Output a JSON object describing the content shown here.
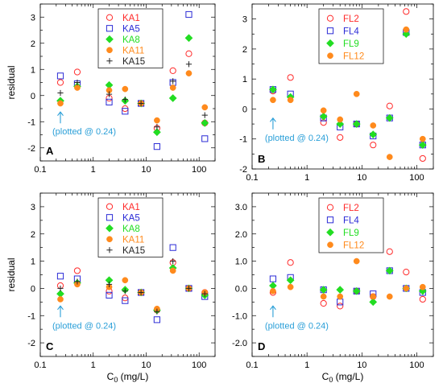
{
  "colors": {
    "series1": "#ff2a2a",
    "series2": "#2b2bd6",
    "series3": "#22dd22",
    "series4": "#ff8a1c",
    "series5": "#222222",
    "annotation": "#2a9fd8"
  },
  "chart_data": [
    {
      "id": "A",
      "type": "scatter",
      "panel_label": "A",
      "ylabel": "residual",
      "xlabel": "",
      "xscale": "log",
      "xlim": [
        0.1,
        200
      ],
      "ylim": [
        -2.5,
        3.5
      ],
      "yticks": [
        -2,
        -1,
        0,
        1,
        2,
        3
      ],
      "ytick_labels": [
        "-2",
        "-1",
        "0",
        "1",
        "2",
        "3"
      ],
      "xticks": [
        0.1,
        1,
        10,
        100
      ],
      "xtick_labels": [
        "0.1",
        "1",
        "10",
        "100"
      ],
      "legend_position": "top-center",
      "annotation": "(plotted @ 0.24)",
      "series": [
        {
          "name": "KA1",
          "marker": "circle-open",
          "color": "#ff2a2a",
          "points": [
            [
              0.24,
              0.5
            ],
            [
              0.5,
              0.9
            ],
            [
              2,
              -0.1
            ],
            [
              4,
              -0.5
            ],
            [
              8,
              -0.3
            ],
            [
              16,
              -1.25
            ],
            [
              32,
              0.95
            ],
            [
              64,
              1.6
            ],
            [
              128,
              -1.05
            ]
          ]
        },
        {
          "name": "KA5",
          "marker": "square-open",
          "color": "#2b2bd6",
          "points": [
            [
              0.24,
              0.75
            ],
            [
              0.5,
              0.45
            ],
            [
              2,
              -0.25
            ],
            [
              4,
              -0.6
            ],
            [
              8,
              -0.3
            ],
            [
              16,
              -1.95
            ],
            [
              32,
              0.5
            ],
            [
              64,
              3.1
            ],
            [
              128,
              -1.65
            ]
          ]
        },
        {
          "name": "KA8",
          "marker": "diamond-filled",
          "color": "#22dd22",
          "points": [
            [
              0.24,
              -0.2
            ],
            [
              0.5,
              0.35
            ],
            [
              2,
              0.4
            ],
            [
              4,
              -0.2
            ],
            [
              8,
              -0.3
            ],
            [
              16,
              -1.4
            ],
            [
              32,
              -0.1
            ],
            [
              64,
              2.2
            ],
            [
              128,
              -1.05
            ]
          ]
        },
        {
          "name": "KA11",
          "marker": "circle-filled",
          "color": "#ff8a1c",
          "points": [
            [
              0.24,
              -0.3
            ],
            [
              0.5,
              0.3
            ],
            [
              2,
              0.2
            ],
            [
              4,
              0.25
            ],
            [
              8,
              -0.3
            ],
            [
              16,
              -0.95
            ],
            [
              32,
              0.3
            ],
            [
              64,
              0.85
            ],
            [
              128,
              -0.45
            ]
          ]
        },
        {
          "name": "KA15",
          "marker": "plus",
          "color": "#222222",
          "points": [
            [
              0.24,
              0.1
            ],
            [
              0.5,
              0.5
            ],
            [
              2,
              0.05
            ],
            [
              4,
              -0.15
            ],
            [
              8,
              -0.3
            ],
            [
              16,
              -1.2
            ],
            [
              32,
              0.55
            ],
            [
              64,
              1.2
            ],
            [
              128,
              -0.75
            ]
          ]
        }
      ]
    },
    {
      "id": "B",
      "type": "scatter",
      "panel_label": "B",
      "ylabel": "",
      "xlabel": "",
      "xscale": "log",
      "xlim": [
        0.1,
        200
      ],
      "ylim": [
        -2,
        3.5
      ],
      "yticks": [
        -2,
        -1,
        0,
        1,
        2,
        3
      ],
      "ytick_labels": [
        "-2",
        "-1",
        "0",
        "1",
        "2",
        "3"
      ],
      "xticks": [
        0.1,
        1,
        10,
        100
      ],
      "xtick_labels": [
        "0.1",
        "1",
        "10",
        "100"
      ],
      "legend_position": "top-center",
      "annotation": "(plotted @ 0.24)",
      "series": [
        {
          "name": "FL2",
          "marker": "circle-open",
          "color": "#ff2a2a",
          "points": [
            [
              0.24,
              0.6
            ],
            [
              0.5,
              1.05
            ],
            [
              2,
              -0.45
            ],
            [
              4,
              -0.95
            ],
            [
              8,
              -0.5
            ],
            [
              16,
              -1.2
            ],
            [
              32,
              0.1
            ],
            [
              64,
              3.25
            ],
            [
              128,
              -1.65
            ]
          ]
        },
        {
          "name": "FL4",
          "marker": "square-open",
          "color": "#2b2bd6",
          "points": [
            [
              0.24,
              0.65
            ],
            [
              0.5,
              0.5
            ],
            [
              2,
              -0.3
            ],
            [
              4,
              -0.6
            ],
            [
              8,
              -0.5
            ],
            [
              16,
              -0.9
            ],
            [
              32,
              -0.3
            ],
            [
              64,
              2.55
            ],
            [
              128,
              -1.2
            ]
          ]
        },
        {
          "name": "FL9",
          "marker": "diamond-filled",
          "color": "#22dd22",
          "points": [
            [
              0.24,
              0.65
            ],
            [
              0.5,
              0.4
            ],
            [
              2,
              -0.25
            ],
            [
              4,
              -0.5
            ],
            [
              8,
              -0.5
            ],
            [
              16,
              -0.85
            ],
            [
              32,
              -0.3
            ],
            [
              64,
              2.5
            ],
            [
              128,
              -1.2
            ]
          ]
        },
        {
          "name": "FL12",
          "marker": "circle-filled",
          "color": "#ff8a1c",
          "points": [
            [
              0.24,
              0.3
            ],
            [
              0.5,
              0.3
            ],
            [
              2,
              -0.05
            ],
            [
              4,
              -0.35
            ],
            [
              8,
              0.5
            ],
            [
              16,
              -0.55
            ],
            [
              32,
              -1.6
            ],
            [
              64,
              2.65
            ],
            [
              128,
              -1.0
            ]
          ]
        }
      ]
    },
    {
      "id": "C",
      "type": "scatter",
      "panel_label": "C",
      "ylabel": "residual",
      "xlabel": "C0 (mg/L)",
      "xscale": "log",
      "xlim": [
        0.1,
        200
      ],
      "ylim": [
        -2.5,
        3.5
      ],
      "yticks": [
        -2,
        -1,
        0,
        1,
        2,
        3
      ],
      "ytick_labels": [
        "-2",
        "-1",
        "0",
        "1",
        "2",
        "3"
      ],
      "xticks": [
        0.1,
        1,
        10,
        100
      ],
      "xtick_labels": [
        "0.1",
        "1",
        "10",
        "100"
      ],
      "legend_position": "top-center",
      "annotation": "(plotted @ 0.24)",
      "series": [
        {
          "name": "KA1",
          "marker": "circle-open",
          "color": "#ff2a2a",
          "points": [
            [
              0.24,
              0.1
            ],
            [
              0.5,
              0.65
            ],
            [
              2,
              -0.1
            ],
            [
              4,
              -0.35
            ],
            [
              8,
              -0.15
            ],
            [
              16,
              -0.8
            ],
            [
              32,
              0.95
            ],
            [
              64,
              0.0
            ],
            [
              128,
              -0.15
            ]
          ]
        },
        {
          "name": "KA5",
          "marker": "square-open",
          "color": "#2b2bd6",
          "points": [
            [
              0.24,
              0.45
            ],
            [
              0.5,
              0.35
            ],
            [
              2,
              -0.25
            ],
            [
              4,
              -0.45
            ],
            [
              8,
              -0.15
            ],
            [
              16,
              -1.15
            ],
            [
              32,
              1.5
            ],
            [
              64,
              0.0
            ],
            [
              128,
              -0.3
            ]
          ]
        },
        {
          "name": "KA8",
          "marker": "diamond-filled",
          "color": "#22dd22",
          "points": [
            [
              0.24,
              -0.2
            ],
            [
              0.5,
              0.2
            ],
            [
              2,
              0.3
            ],
            [
              4,
              -0.05
            ],
            [
              8,
              -0.15
            ],
            [
              16,
              -0.8
            ],
            [
              32,
              0.75
            ],
            [
              64,
              0.0
            ],
            [
              128,
              -0.25
            ]
          ]
        },
        {
          "name": "KA11",
          "marker": "circle-filled",
          "color": "#ff8a1c",
          "points": [
            [
              0.24,
              -0.4
            ],
            [
              0.5,
              0.15
            ],
            [
              2,
              0.05
            ],
            [
              4,
              0.3
            ],
            [
              8,
              -0.15
            ],
            [
              16,
              -0.75
            ],
            [
              32,
              0.65
            ],
            [
              64,
              0.0
            ],
            [
              128,
              -0.15
            ]
          ]
        },
        {
          "name": "KA15",
          "marker": "plus",
          "color": "#222222",
          "points": [
            [
              0.24,
              0.0
            ],
            [
              0.5,
              0.25
            ],
            [
              2,
              0.15
            ],
            [
              4,
              -0.1
            ],
            [
              8,
              -0.15
            ],
            [
              16,
              -0.85
            ],
            [
              32,
              1.0
            ],
            [
              64,
              0.0
            ],
            [
              128,
              -0.2
            ]
          ]
        }
      ]
    },
    {
      "id": "D",
      "type": "scatter",
      "panel_label": "D",
      "ylabel": "",
      "xlabel": "C0 (mg/L)",
      "xscale": "log",
      "xlim": [
        0.1,
        200
      ],
      "ylim": [
        -2.5,
        3.5
      ],
      "yticks": [
        -2,
        -1,
        0,
        1,
        2,
        3
      ],
      "ytick_labels": [
        "-2.0",
        "-1.0",
        "0.0",
        "1.0",
        "2.0",
        "3.0"
      ],
      "xticks": [
        0.1,
        1,
        10,
        100
      ],
      "xtick_labels": [
        "0.1",
        "1",
        "10",
        "100"
      ],
      "legend_position": "top-center",
      "annotation": "(plotted @ 0.24)",
      "series": [
        {
          "name": "FL2",
          "marker": "circle-open",
          "color": "#ff2a2a",
          "points": [
            [
              0.24,
              -0.15
            ],
            [
              0.5,
              0.95
            ],
            [
              2,
              -0.55
            ],
            [
              4,
              -0.65
            ],
            [
              8,
              -0.1
            ],
            [
              16,
              -0.3
            ],
            [
              32,
              1.35
            ],
            [
              64,
              0.6
            ],
            [
              128,
              -0.4
            ]
          ]
        },
        {
          "name": "FL4",
          "marker": "square-open",
          "color": "#2b2bd6",
          "points": [
            [
              0.24,
              0.35
            ],
            [
              0.5,
              0.4
            ],
            [
              2,
              -0.05
            ],
            [
              4,
              -0.5
            ],
            [
              8,
              -0.1
            ],
            [
              16,
              -0.2
            ],
            [
              32,
              0.65
            ],
            [
              64,
              0.0
            ],
            [
              128,
              -0.15
            ]
          ]
        },
        {
          "name": "FL9",
          "marker": "diamond-filled",
          "color": "#22dd22",
          "points": [
            [
              0.24,
              0.1
            ],
            [
              0.5,
              0.3
            ],
            [
              2,
              -0.05
            ],
            [
              4,
              -0.05
            ],
            [
              8,
              -0.1
            ],
            [
              16,
              -0.5
            ],
            [
              32,
              0.65
            ],
            [
              64,
              0.0
            ],
            [
              128,
              -0.1
            ]
          ]
        },
        {
          "name": "FL12",
          "marker": "circle-filled",
          "color": "#ff8a1c",
          "points": [
            [
              0.24,
              -0.1
            ],
            [
              0.5,
              0.05
            ],
            [
              2,
              -0.3
            ],
            [
              4,
              -0.3
            ],
            [
              8,
              1.0
            ],
            [
              16,
              -0.3
            ],
            [
              32,
              -0.3
            ],
            [
              64,
              0.0
            ],
            [
              128,
              0.05
            ]
          ]
        }
      ]
    }
  ]
}
